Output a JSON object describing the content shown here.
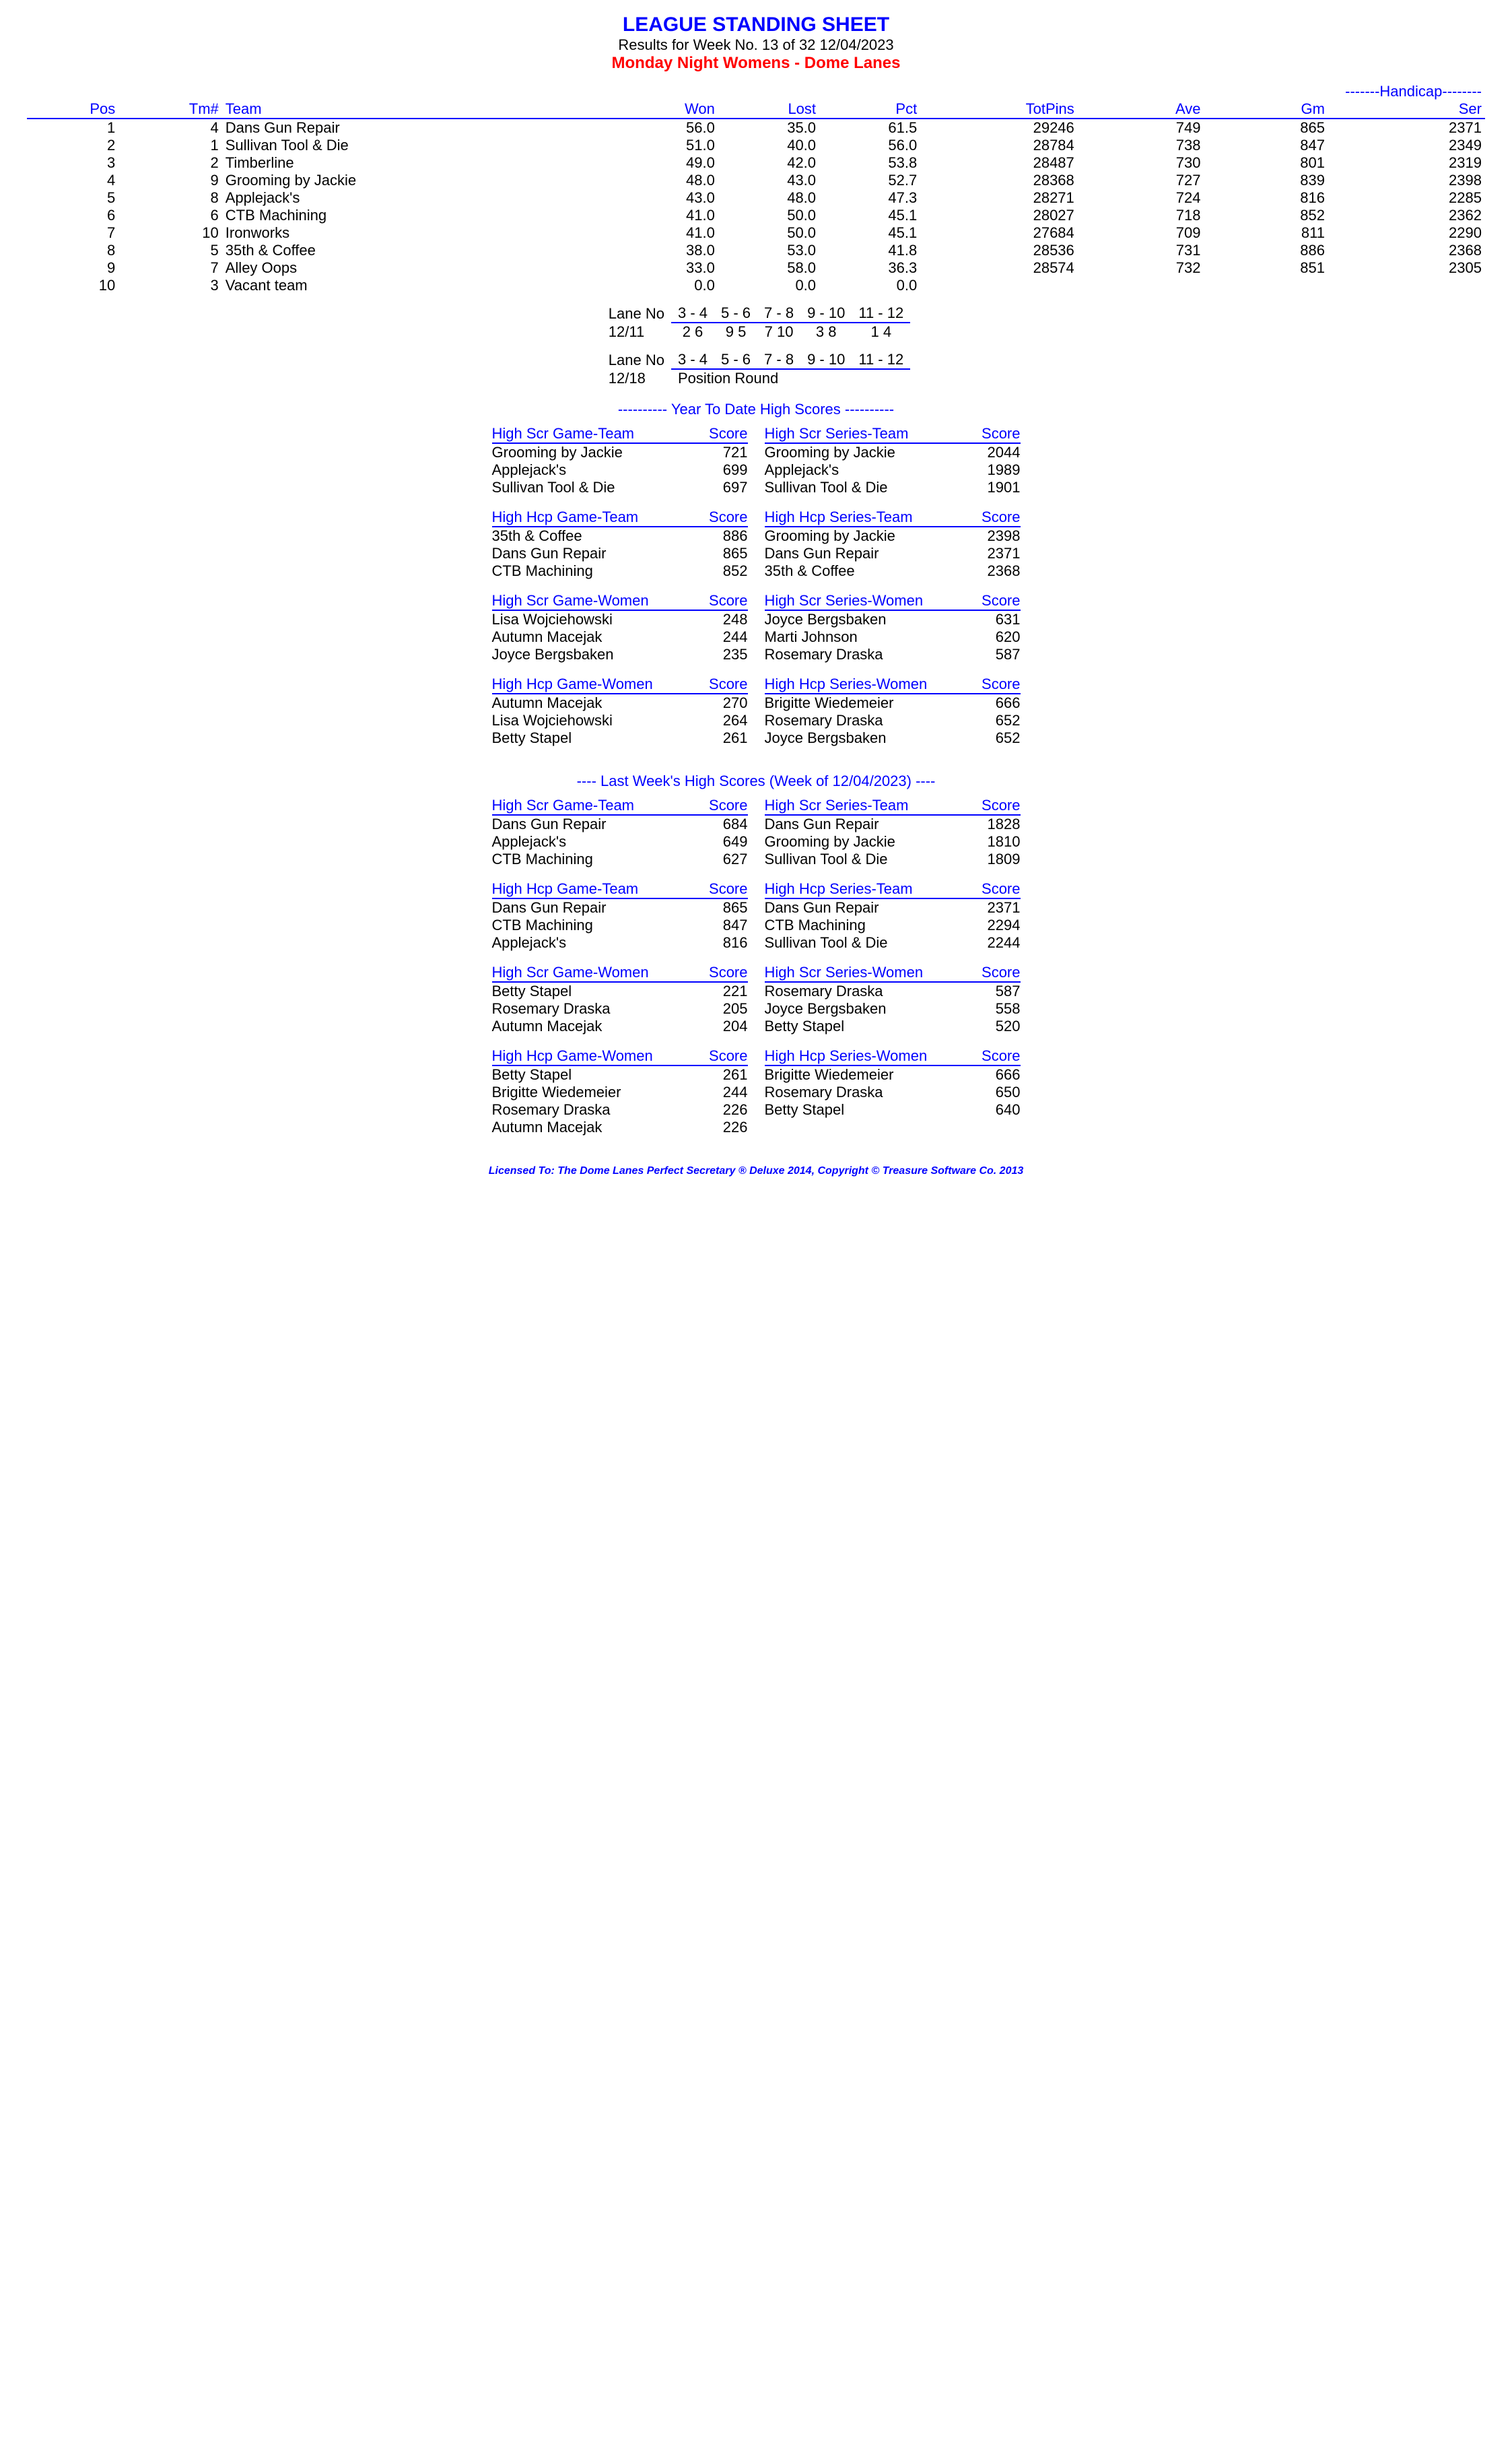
{
  "header": {
    "title": "LEAGUE STANDING SHEET",
    "subtitle": "Results for Week No. 13 of 32    12/04/2023",
    "league": "Monday Night Womens - Dome Lanes"
  },
  "standings": {
    "handicap_label": "-------Handicap--------",
    "cols": [
      "Pos",
      "Tm#",
      "Team",
      "Won",
      "Lost",
      "Pct",
      "TotPins",
      "Ave",
      "Gm",
      "Ser"
    ],
    "rows": [
      [
        "1",
        "4",
        "Dans Gun Repair",
        "56.0",
        "35.0",
        "61.5",
        "29246",
        "749",
        "865",
        "2371"
      ],
      [
        "2",
        "1",
        "Sullivan Tool & Die",
        "51.0",
        "40.0",
        "56.0",
        "28784",
        "738",
        "847",
        "2349"
      ],
      [
        "3",
        "2",
        "Timberline",
        "49.0",
        "42.0",
        "53.8",
        "28487",
        "730",
        "801",
        "2319"
      ],
      [
        "4",
        "9",
        "Grooming by Jackie",
        "48.0",
        "43.0",
        "52.7",
        "28368",
        "727",
        "839",
        "2398"
      ],
      [
        "5",
        "8",
        "Applejack's",
        "43.0",
        "48.0",
        "47.3",
        "28271",
        "724",
        "816",
        "2285"
      ],
      [
        "6",
        "6",
        "CTB Machining",
        "41.0",
        "50.0",
        "45.1",
        "28027",
        "718",
        "852",
        "2362"
      ],
      [
        "7",
        "10",
        "Ironworks",
        "41.0",
        "50.0",
        "45.1",
        "27684",
        "709",
        "811",
        "2290"
      ],
      [
        "8",
        "5",
        "35th & Coffee",
        "38.0",
        "53.0",
        "41.8",
        "28536",
        "731",
        "886",
        "2368"
      ],
      [
        "9",
        "7",
        "Alley Oops",
        "33.0",
        "58.0",
        "36.3",
        "28574",
        "732",
        "851",
        "2305"
      ],
      [
        "10",
        "3",
        "Vacant team",
        "0.0",
        "0.0",
        "0.0",
        "",
        "",
        "",
        ""
      ]
    ]
  },
  "lanes1": {
    "label": "Lane No",
    "nums": [
      "3 -  4",
      "5 -  6",
      "7 -  8",
      "9 - 10",
      "11 - 12"
    ],
    "date": "12/11",
    "assign": [
      "2   6",
      "9   5",
      "7  10",
      "3   8",
      "1   4"
    ]
  },
  "lanes2": {
    "label": "Lane No",
    "nums": [
      "3 -  4",
      "5 -  6",
      "7 -  8",
      "9 - 10",
      "11 - 12"
    ],
    "date": "12/18",
    "note": "Position Round"
  },
  "ytd_title": "----------  Year To Date High Scores  ----------",
  "lw_title": "----  Last Week's High Scores   (Week of 12/04/2023)  ----",
  "score_hdr": "Score",
  "ytd": {
    "left": [
      {
        "h": "High Scr Game-Team",
        "rows": [
          [
            "Grooming by Jackie",
            "721"
          ],
          [
            "Applejack's",
            "699"
          ],
          [
            "Sullivan Tool & Die",
            "697"
          ]
        ]
      },
      {
        "h": "High Hcp Game-Team",
        "rows": [
          [
            "35th & Coffee",
            "886"
          ],
          [
            "Dans Gun Repair",
            "865"
          ],
          [
            "CTB Machining",
            "852"
          ]
        ]
      },
      {
        "h": "High Scr Game-Women",
        "rows": [
          [
            "Lisa Wojciehowski",
            "248"
          ],
          [
            "Autumn Macejak",
            "244"
          ],
          [
            "Joyce Bergsbaken",
            "235"
          ]
        ]
      },
      {
        "h": "High Hcp Game-Women",
        "rows": [
          [
            "Autumn Macejak",
            "270"
          ],
          [
            "Lisa Wojciehowski",
            "264"
          ],
          [
            "Betty Stapel",
            "261"
          ]
        ]
      }
    ],
    "right": [
      {
        "h": "High Scr Series-Team",
        "rows": [
          [
            "Grooming by Jackie",
            "2044"
          ],
          [
            "Applejack's",
            "1989"
          ],
          [
            "Sullivan Tool & Die",
            "1901"
          ]
        ]
      },
      {
        "h": "High Hcp Series-Team",
        "rows": [
          [
            "Grooming by Jackie",
            "2398"
          ],
          [
            "Dans Gun Repair",
            "2371"
          ],
          [
            "35th & Coffee",
            "2368"
          ]
        ]
      },
      {
        "h": "High Scr Series-Women",
        "rows": [
          [
            "Joyce Bergsbaken",
            "631"
          ],
          [
            "Marti Johnson",
            "620"
          ],
          [
            "Rosemary Draska",
            "587"
          ]
        ]
      },
      {
        "h": "High Hcp Series-Women",
        "rows": [
          [
            "Brigitte Wiedemeier",
            "666"
          ],
          [
            "Rosemary Draska",
            "652"
          ],
          [
            "Joyce Bergsbaken",
            "652"
          ]
        ]
      }
    ]
  },
  "lw": {
    "left": [
      {
        "h": "High Scr Game-Team",
        "rows": [
          [
            "Dans Gun Repair",
            "684"
          ],
          [
            "Applejack's",
            "649"
          ],
          [
            "CTB Machining",
            "627"
          ]
        ]
      },
      {
        "h": "High Hcp Game-Team",
        "rows": [
          [
            "Dans Gun Repair",
            "865"
          ],
          [
            "CTB Machining",
            "847"
          ],
          [
            "Applejack's",
            "816"
          ]
        ]
      },
      {
        "h": "High Scr Game-Women",
        "rows": [
          [
            "Betty Stapel",
            "221"
          ],
          [
            "Rosemary Draska",
            "205"
          ],
          [
            "Autumn Macejak",
            "204"
          ]
        ]
      },
      {
        "h": "High Hcp Game-Women",
        "rows": [
          [
            "Betty Stapel",
            "261"
          ],
          [
            "Brigitte Wiedemeier",
            "244"
          ],
          [
            "Rosemary Draska",
            "226"
          ],
          [
            "Autumn Macejak",
            "226"
          ]
        ]
      }
    ],
    "right": [
      {
        "h": "High Scr Series-Team",
        "rows": [
          [
            "Dans Gun Repair",
            "1828"
          ],
          [
            "Grooming by Jackie",
            "1810"
          ],
          [
            "Sullivan Tool & Die",
            "1809"
          ]
        ]
      },
      {
        "h": "High Hcp Series-Team",
        "rows": [
          [
            "Dans Gun Repair",
            "2371"
          ],
          [
            "CTB Machining",
            "2294"
          ],
          [
            "Sullivan Tool & Die",
            "2244"
          ]
        ]
      },
      {
        "h": "High Scr Series-Women",
        "rows": [
          [
            "Rosemary Draska",
            "587"
          ],
          [
            "Joyce Bergsbaken",
            "558"
          ],
          [
            "Betty Stapel",
            "520"
          ]
        ]
      },
      {
        "h": "High Hcp Series-Women",
        "rows": [
          [
            "Brigitte Wiedemeier",
            "666"
          ],
          [
            "Rosemary Draska",
            "650"
          ],
          [
            "Betty Stapel",
            "640"
          ]
        ]
      }
    ]
  },
  "footer": "Licensed To: The Dome Lanes    Perfect Secretary ® Deluxe  2014, Copyright © Treasure Software Co. 2013"
}
